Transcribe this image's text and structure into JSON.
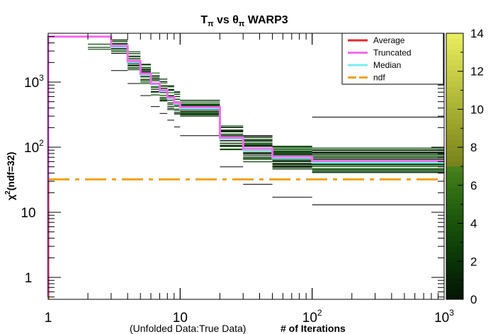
{
  "chart_data": {
    "type": "line",
    "title": "T_π vs θ_π WARP3",
    "xlabel": "# of Iterations",
    "xlabel_prefix": "(Unfolded Data:True Data)",
    "ylabel": "χ²(ndf=32)",
    "x_scale": "log",
    "y_scale": "log",
    "xlim": [
      1,
      1000
    ],
    "ylim": [
      0.5,
      6000
    ],
    "x_ticks": [
      "1",
      "10",
      "10²",
      "10³"
    ],
    "y_ticks": [
      "1",
      "10",
      "10²",
      "10³"
    ],
    "legend_placement": "top-right",
    "legend": [
      "Average",
      "Truncated",
      "Median",
      "ndf"
    ],
    "series": [
      {
        "name": "Average",
        "color": "#e8262b",
        "x": [
          1,
          3,
          4,
          5,
          6,
          7,
          8,
          9,
          10,
          20,
          30,
          50,
          100,
          1000
        ],
        "values": [
          5000,
          3600,
          2100,
          1350,
          950,
          750,
          580,
          480,
          410,
          140,
          95,
          72,
          62,
          62
        ]
      },
      {
        "name": "Truncated",
        "color": "#f56bf0",
        "x": [
          1,
          3,
          4,
          5,
          6,
          7,
          8,
          9,
          10,
          20,
          30,
          50,
          100,
          1000
        ],
        "values": [
          5000,
          3600,
          2100,
          1350,
          950,
          750,
          580,
          480,
          410,
          140,
          95,
          72,
          62,
          62
        ]
      },
      {
        "name": "Median",
        "color": "#78eeee",
        "x": [
          1,
          3,
          4,
          5,
          6,
          7,
          8,
          9,
          10,
          20,
          30,
          50,
          100,
          1000
        ],
        "values": [
          5000,
          3400,
          2000,
          1300,
          920,
          720,
          560,
          460,
          390,
          135,
          90,
          68,
          58,
          58
        ]
      },
      {
        "name": "ndf",
        "color": "#f2a31c",
        "x": [
          1,
          1000
        ],
        "values": [
          32,
          32
        ]
      }
    ],
    "colorbar": {
      "min": 0,
      "max": 14,
      "ticks": [
        "0",
        "2",
        "4",
        "6",
        "8",
        "10",
        "12",
        "14"
      ]
    }
  }
}
